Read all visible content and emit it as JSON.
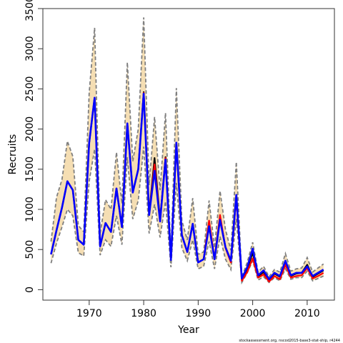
{
  "chart_data": {
    "type": "line",
    "title": "",
    "xlabel": "Year",
    "ylabel": "Recruits",
    "xlim": [
      1961.5,
      2015
    ],
    "ylim": [
      -130,
      3500
    ],
    "x_ticks": [
      1970,
      1980,
      1990,
      2000,
      2010
    ],
    "y_ticks": [
      0,
      500,
      1000,
      1500,
      2000,
      2500,
      3000,
      3500
    ],
    "grid": false,
    "legend": "none",
    "footnote": "stockassessment.org, nscod2015-base3-stat-ship, r4244",
    "x": [
      1963,
      1964,
      1965,
      1966,
      1967,
      1968,
      1969,
      1970,
      1971,
      1972,
      1973,
      1974,
      1975,
      1976,
      1977,
      1978,
      1979,
      1980,
      1981,
      1982,
      1983,
      1984,
      1985,
      1986,
      1987,
      1988,
      1989,
      1990,
      1991,
      1992,
      1993,
      1994,
      1995,
      1996,
      1997,
      1998,
      1999,
      2000,
      2001,
      2002,
      2003,
      2004,
      2005,
      2006,
      2007,
      2008,
      2009,
      2010,
      2011,
      2012,
      2013
    ],
    "series": [
      {
        "role": "confidence-band",
        "colors": {
          "fill": "#f5deb3",
          "line": "#7f7f7f"
        },
        "lower": [
          330,
          580,
          780,
          1000,
          920,
          460,
          420,
          1350,
          1750,
          430,
          620,
          540,
          920,
          560,
          1650,
          880,
          1110,
          1780,
          700,
          1060,
          650,
          1100,
          280,
          1330,
          520,
          360,
          620,
          260,
          290,
          600,
          260,
          660,
          380,
          250,
          880,
          90,
          210,
          360,
          120,
          160,
          90,
          150,
          110,
          260,
          130,
          150,
          150,
          230,
          110,
          140,
          170
        ],
        "upper": [
          600,
          1150,
          1370,
          1850,
          1660,
          800,
          720,
          2450,
          3260,
          700,
          1120,
          1000,
          1710,
          1070,
          2830,
          1600,
          2000,
          3390,
          1300,
          2150,
          1240,
          2200,
          420,
          2510,
          860,
          620,
          1140,
          440,
          470,
          1110,
          520,
          1230,
          750,
          490,
          1590,
          160,
          340,
          590,
          220,
          290,
          160,
          250,
          220,
          450,
          230,
          260,
          270,
          400,
          220,
          270,
          320
        ]
      },
      {
        "name": "",
        "color": "#000000",
        "values": [
          440,
          740,
          1020,
          1350,
          1240,
          620,
          560,
          1830,
          2390,
          540,
          830,
          720,
          1260,
          780,
          2070,
          1210,
          1500,
          2460,
          940,
          1640,
          870,
          1650,
          370,
          1820,
          680,
          470,
          820,
          340,
          380,
          830,
          380,
          900,
          530,
          350,
          1170,
          130,
          260,
          460,
          170,
          220,
          120,
          200,
          160,
          350,
          170,
          200,
          210,
          310,
          160,
          200,
          240
        ]
      },
      {
        "name": "",
        "color": "#ff0000",
        "values": [
          440,
          740,
          1020,
          1350,
          1240,
          620,
          560,
          1830,
          2390,
          540,
          830,
          720,
          1260,
          780,
          2070,
          1210,
          1500,
          2450,
          930,
          1560,
          860,
          1640,
          370,
          1820,
          680,
          470,
          820,
          340,
          380,
          860,
          380,
          930,
          520,
          340,
          1150,
          110,
          220,
          390,
          150,
          190,
          100,
          170,
          130,
          310,
          150,
          170,
          180,
          270,
          140,
          170,
          210
        ]
      },
      {
        "name": "",
        "color": "#0000ff",
        "values": [
          440,
          740,
          1020,
          1350,
          1240,
          620,
          560,
          1830,
          2390,
          540,
          830,
          720,
          1260,
          780,
          2070,
          1210,
          1500,
          2440,
          930,
          1480,
          850,
          1620,
          370,
          1830,
          680,
          470,
          820,
          340,
          380,
          790,
          380,
          870,
          530,
          360,
          1180,
          140,
          280,
          510,
          180,
          240,
          130,
          210,
          170,
          360,
          180,
          210,
          210,
          290,
          170,
          210,
          250
        ]
      }
    ]
  }
}
